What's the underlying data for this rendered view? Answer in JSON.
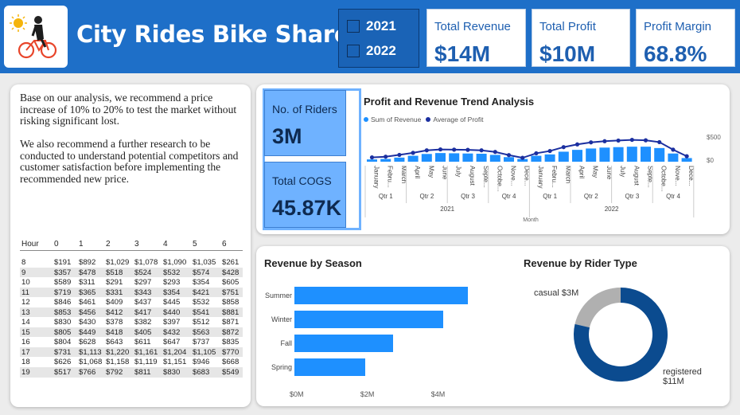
{
  "header": {
    "title": "City Rides Bike Share",
    "years": [
      "2021",
      "2022"
    ]
  },
  "kpis": [
    {
      "title": "Total Revenue",
      "value": "$14M"
    },
    {
      "title": "Total Profit",
      "value": "$10M"
    },
    {
      "title": "Profit Margin",
      "value": "68.8%"
    }
  ],
  "recommendation": {
    "p1": "Base on our analysis, we recommend a price increase of 10% to 20% to test the market without risking significant lost.",
    "p2": "We also recommend a further research to be conducted to understand potential competitors and customer satisfaction before implementing the recommended new price."
  },
  "hour_table": {
    "columns": [
      "Hour",
      "0",
      "1",
      "2",
      "3",
      "4",
      "5",
      "6"
    ],
    "rows": [
      [
        "8",
        "$191",
        "$892",
        "$1,029",
        "$1,078",
        "$1,090",
        "$1,035",
        "$261"
      ],
      [
        "9",
        "$357",
        "$478",
        "$518",
        "$524",
        "$532",
        "$574",
        "$428"
      ],
      [
        "10",
        "$589",
        "$311",
        "$291",
        "$297",
        "$293",
        "$354",
        "$605"
      ],
      [
        "11",
        "$719",
        "$365",
        "$331",
        "$343",
        "$354",
        "$421",
        "$751"
      ],
      [
        "12",
        "$846",
        "$461",
        "$409",
        "$437",
        "$445",
        "$532",
        "$858"
      ],
      [
        "13",
        "$853",
        "$456",
        "$412",
        "$417",
        "$440",
        "$541",
        "$881"
      ],
      [
        "14",
        "$830",
        "$430",
        "$378",
        "$382",
        "$397",
        "$512",
        "$871"
      ],
      [
        "15",
        "$805",
        "$449",
        "$418",
        "$405",
        "$432",
        "$563",
        "$872"
      ],
      [
        "16",
        "$804",
        "$628",
        "$643",
        "$611",
        "$647",
        "$737",
        "$835"
      ],
      [
        "17",
        "$731",
        "$1,113",
        "$1,220",
        "$1,161",
        "$1,204",
        "$1,105",
        "$770"
      ],
      [
        "18",
        "$626",
        "$1,068",
        "$1,158",
        "$1,119",
        "$1,151",
        "$946",
        "$668"
      ],
      [
        "19",
        "$517",
        "$766",
        "$792",
        "$811",
        "$830",
        "$683",
        "$549"
      ]
    ]
  },
  "tiles": {
    "riders_title": "No. of Riders",
    "riders_value": "3M",
    "cogs_title": "Total COGS",
    "cogs_value": "45.87K"
  },
  "chart_data": [
    {
      "type": "bar",
      "title": "Profit and Revenue Trend Analysis",
      "xlabel": "Month",
      "ylabel": "",
      "y_ticks": [
        "$500",
        "$0"
      ],
      "legend": [
        "Sum of Revenue",
        "Average of Profit"
      ],
      "months": [
        "January",
        "Febru...",
        "March",
        "April",
        "May",
        "June",
        "July",
        "August",
        "Septe...",
        "Octobe...",
        "Nove...",
        "Dece...",
        "January",
        "Febru...",
        "March",
        "April",
        "May",
        "June",
        "July",
        "August",
        "Septe...",
        "Octobe...",
        "Nove...",
        "Dece..."
      ],
      "quarters": [
        "Qtr 1",
        "Qtr 2",
        "Qtr 3",
        "Qtr 4",
        "Qtr 1",
        "Qtr 2",
        "Qtr 3",
        "Qtr 4"
      ],
      "years": [
        "2021",
        "2022"
      ],
      "series": [
        {
          "name": "Sum of Revenue",
          "values": [
            50,
            60,
            90,
            130,
            170,
            190,
            185,
            180,
            175,
            150,
            100,
            60,
            130,
            160,
            220,
            260,
            290,
            310,
            320,
            330,
            330,
            300,
            180,
            80
          ]
        },
        {
          "name": "Average of Profit",
          "values": [
            95,
            110,
            150,
            195,
            250,
            270,
            265,
            260,
            250,
            215,
            145,
            85,
            185,
            235,
            320,
            380,
            425,
            450,
            465,
            480,
            470,
            430,
            265,
            120
          ]
        }
      ],
      "ylim": [
        0,
        700
      ]
    },
    {
      "type": "bar",
      "title": "Revenue by Season",
      "categories": [
        "Summer",
        "Winter",
        "Fall",
        "Spring"
      ],
      "values": [
        4.9,
        4.2,
        2.8,
        2.0
      ],
      "x_ticks": [
        "$0M",
        "$2M",
        "$4M"
      ],
      "xlim": [
        0,
        5.4
      ]
    },
    {
      "type": "pie",
      "title": "Revenue by Rider Type",
      "categories": [
        "casual",
        "registered"
      ],
      "values": [
        3,
        11
      ],
      "labels": [
        "casual $3M",
        "registered $11M"
      ]
    }
  ],
  "colors": {
    "header_blue": "#1e6fc8",
    "revenue_bar": "#1e90ff",
    "profit_line": "#1b2fa0",
    "donut_registered": "#0b4b8f",
    "donut_casual": "#b0b0b0"
  }
}
